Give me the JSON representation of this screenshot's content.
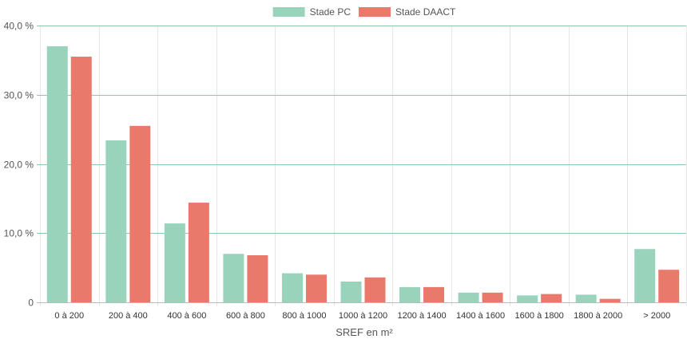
{
  "chart_data": {
    "type": "bar",
    "title": "",
    "xlabel": "SREF en m²",
    "ylabel": "",
    "ylim": [
      0,
      40
    ],
    "yticks": [
      0,
      10,
      20,
      30,
      40
    ],
    "ytick_labels": [
      "0",
      "10,0 %",
      "20,0 %",
      "30,0 %",
      "40,0 %"
    ],
    "categories": [
      "0 à 200",
      "200 à 400",
      "400 à 600",
      "600 à 800",
      "800 à 1000",
      "1000 à 1200",
      "1200 à 1400",
      "1400 à 1600",
      "1600 à 1800",
      "1800 à 2000",
      "> 2000"
    ],
    "series": [
      {
        "name": "Stade PC",
        "color": "#9ad3bc",
        "values": [
          37.0,
          23.4,
          11.4,
          7.0,
          4.2,
          3.0,
          2.2,
          1.4,
          1.0,
          1.1,
          7.7
        ]
      },
      {
        "name": "Stade DAACT",
        "color": "#e8796b",
        "values": [
          35.5,
          25.5,
          14.4,
          6.8,
          4.0,
          3.6,
          2.2,
          1.4,
          1.2,
          0.5,
          4.7
        ]
      }
    ],
    "grid": true,
    "legend_position": "top-center",
    "gridline_color": "#8cc9a9"
  }
}
